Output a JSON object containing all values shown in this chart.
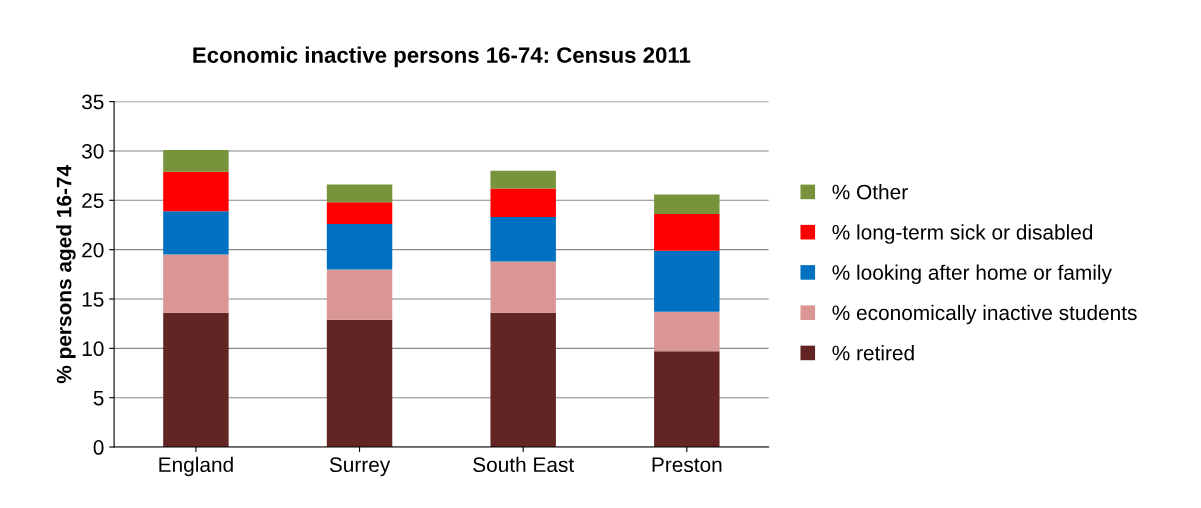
{
  "chart_data": {
    "type": "bar",
    "stacked": true,
    "title": "Economic inactive persons 16-74: Census 2011",
    "ylabel": "% persons aged 16-74",
    "categories": [
      "England",
      "Surrey",
      "South East",
      "Preston"
    ],
    "series": [
      {
        "name": "% retired",
        "color": "#632523",
        "values": [
          13.6,
          12.9,
          13.6,
          9.7
        ]
      },
      {
        "name": "% economically inactive students",
        "color": "#d99694",
        "values": [
          5.9,
          5.1,
          5.2,
          4.0
        ]
      },
      {
        "name": "% looking after home or family",
        "color": "#0070c0",
        "values": [
          4.4,
          4.6,
          4.5,
          6.2
        ]
      },
      {
        "name": "% long-term sick or disabled",
        "color": "#ff0000",
        "values": [
          4.0,
          2.2,
          2.9,
          3.7
        ]
      },
      {
        "name": "% Other",
        "color": "#77933c",
        "values": [
          2.2,
          1.8,
          1.8,
          2.0
        ]
      }
    ],
    "ylim": [
      0,
      35
    ],
    "yticks": [
      0,
      5,
      10,
      15,
      20,
      25,
      30,
      35
    ],
    "grid": "y",
    "legend": "right"
  }
}
